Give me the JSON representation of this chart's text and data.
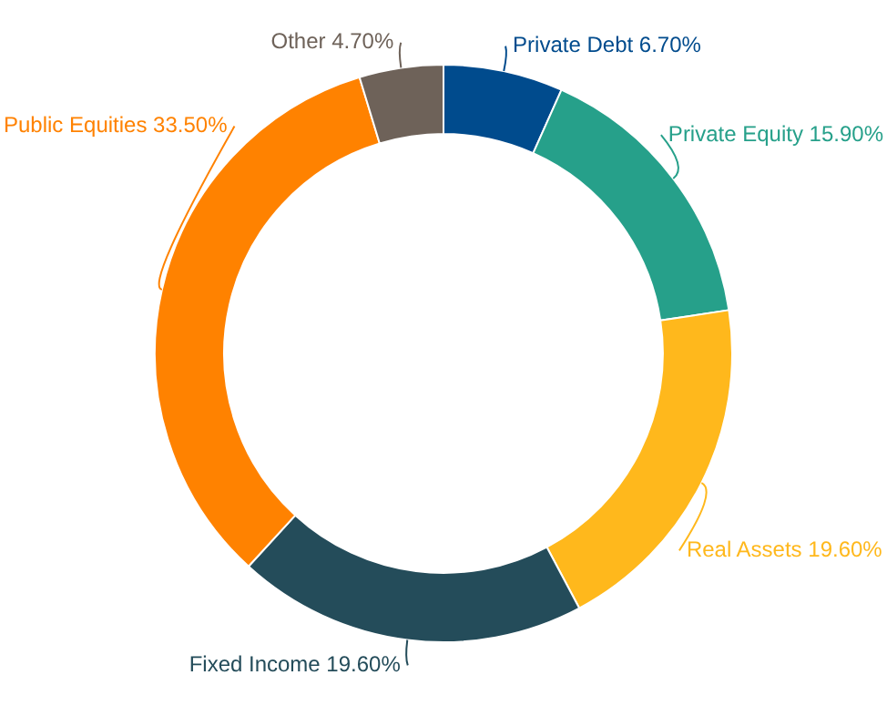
{
  "chart_data": {
    "type": "donut",
    "categories": [
      "Private Debt",
      "Private Equity",
      "Real Assets",
      "Fixed Income",
      "Public Equities",
      "Other"
    ],
    "values": [
      6.7,
      15.9,
      19.6,
      19.6,
      33.5,
      4.7
    ],
    "value_labels": [
      "6.70%",
      "15.90%",
      "19.60%",
      "19.60%",
      "33.50%",
      "4.70%"
    ],
    "colors": [
      "#004b8d",
      "#26a08a",
      "#ffb81c",
      "#244c5a",
      "#ff8200",
      "#6e6259"
    ],
    "legend": false
  }
}
